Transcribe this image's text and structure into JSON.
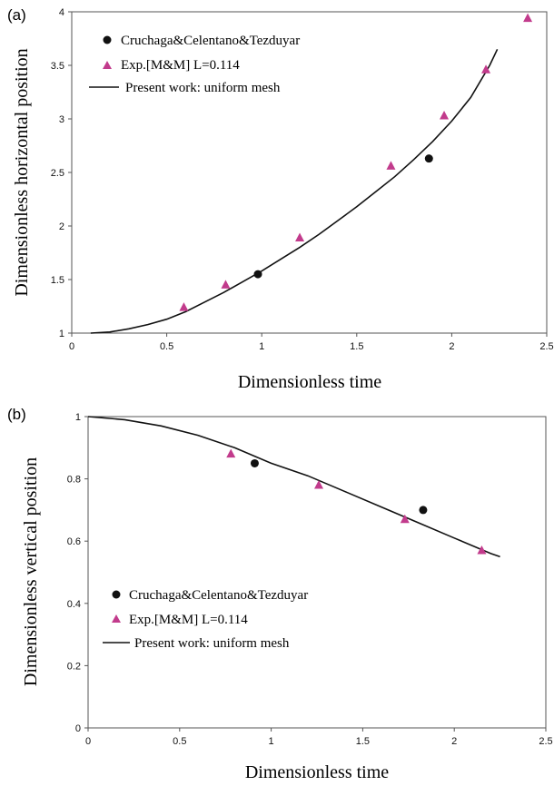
{
  "colors": {
    "triangle": "#c23b8c",
    "circle": "#111111",
    "line": "#111111",
    "axis": "#555555"
  },
  "chart_data": [
    {
      "panel_label": "(a)",
      "type": "scatter",
      "xlabel": "Dimensionless time",
      "ylabel": "Dimensionless horizontal position",
      "xlim": [
        0,
        2.5
      ],
      "ylim": [
        1,
        4
      ],
      "xticks": [
        "0",
        "0.5",
        "1",
        "1.5",
        "2",
        "2.5"
      ],
      "yticks": [
        "1",
        "1.5",
        "2",
        "2.5",
        "3",
        "3.5",
        "4"
      ],
      "grid": false,
      "legend_position": "top-left",
      "series": [
        {
          "name": "Cruchaga&Celentano&Tezduyar",
          "marker": "circle",
          "x": [
            0.98,
            1.88
          ],
          "y": [
            1.55,
            2.63
          ]
        },
        {
          "name": "Exp.[M&M] L=0.114",
          "marker": "triangle",
          "x": [
            0.59,
            0.81,
            1.2,
            1.68,
            1.96,
            2.18,
            2.4
          ],
          "y": [
            1.24,
            1.45,
            1.89,
            2.56,
            3.03,
            3.46,
            3.94
          ]
        },
        {
          "name": "Present work: uniform mesh",
          "marker": "line",
          "x": [
            0.1,
            0.2,
            0.3,
            0.4,
            0.5,
            0.6,
            0.7,
            0.8,
            0.9,
            1.0,
            1.1,
            1.2,
            1.3,
            1.4,
            1.5,
            1.6,
            1.7,
            1.8,
            1.9,
            2.0,
            2.1,
            2.2,
            2.24
          ],
          "y": [
            1.0,
            1.01,
            1.04,
            1.08,
            1.13,
            1.2,
            1.29,
            1.38,
            1.48,
            1.58,
            1.69,
            1.8,
            1.92,
            2.05,
            2.18,
            2.32,
            2.46,
            2.62,
            2.79,
            2.98,
            3.2,
            3.5,
            3.65
          ]
        }
      ]
    },
    {
      "panel_label": "(b)",
      "type": "scatter",
      "xlabel": "Dimensionless time",
      "ylabel": "Dimensionless vertical position",
      "xlim": [
        0,
        2.5
      ],
      "ylim": [
        0,
        1
      ],
      "xticks": [
        "0",
        "0.5",
        "1",
        "1.5",
        "2",
        "2.5"
      ],
      "yticks": [
        "0",
        "0.2",
        "0.4",
        "0.6",
        "0.8",
        "1"
      ],
      "grid": false,
      "legend_position": "bottom-left",
      "series": [
        {
          "name": "Cruchaga&Celentano&Tezduyar",
          "marker": "circle",
          "x": [
            0.91,
            1.83
          ],
          "y": [
            0.85,
            0.7
          ]
        },
        {
          "name": "Exp.[M&M] L=0.114",
          "marker": "triangle",
          "x": [
            0.78,
            1.26,
            1.73,
            2.15
          ],
          "y": [
            0.88,
            0.78,
            0.67,
            0.57
          ]
        },
        {
          "name": "Present work: uniform mesh",
          "marker": "line",
          "x": [
            0.0,
            0.2,
            0.4,
            0.6,
            0.8,
            1.0,
            1.2,
            1.4,
            1.6,
            1.8,
            2.0,
            2.2,
            2.25
          ],
          "y": [
            1.0,
            0.99,
            0.97,
            0.94,
            0.9,
            0.85,
            0.81,
            0.76,
            0.71,
            0.66,
            0.61,
            0.56,
            0.55
          ]
        }
      ]
    }
  ]
}
